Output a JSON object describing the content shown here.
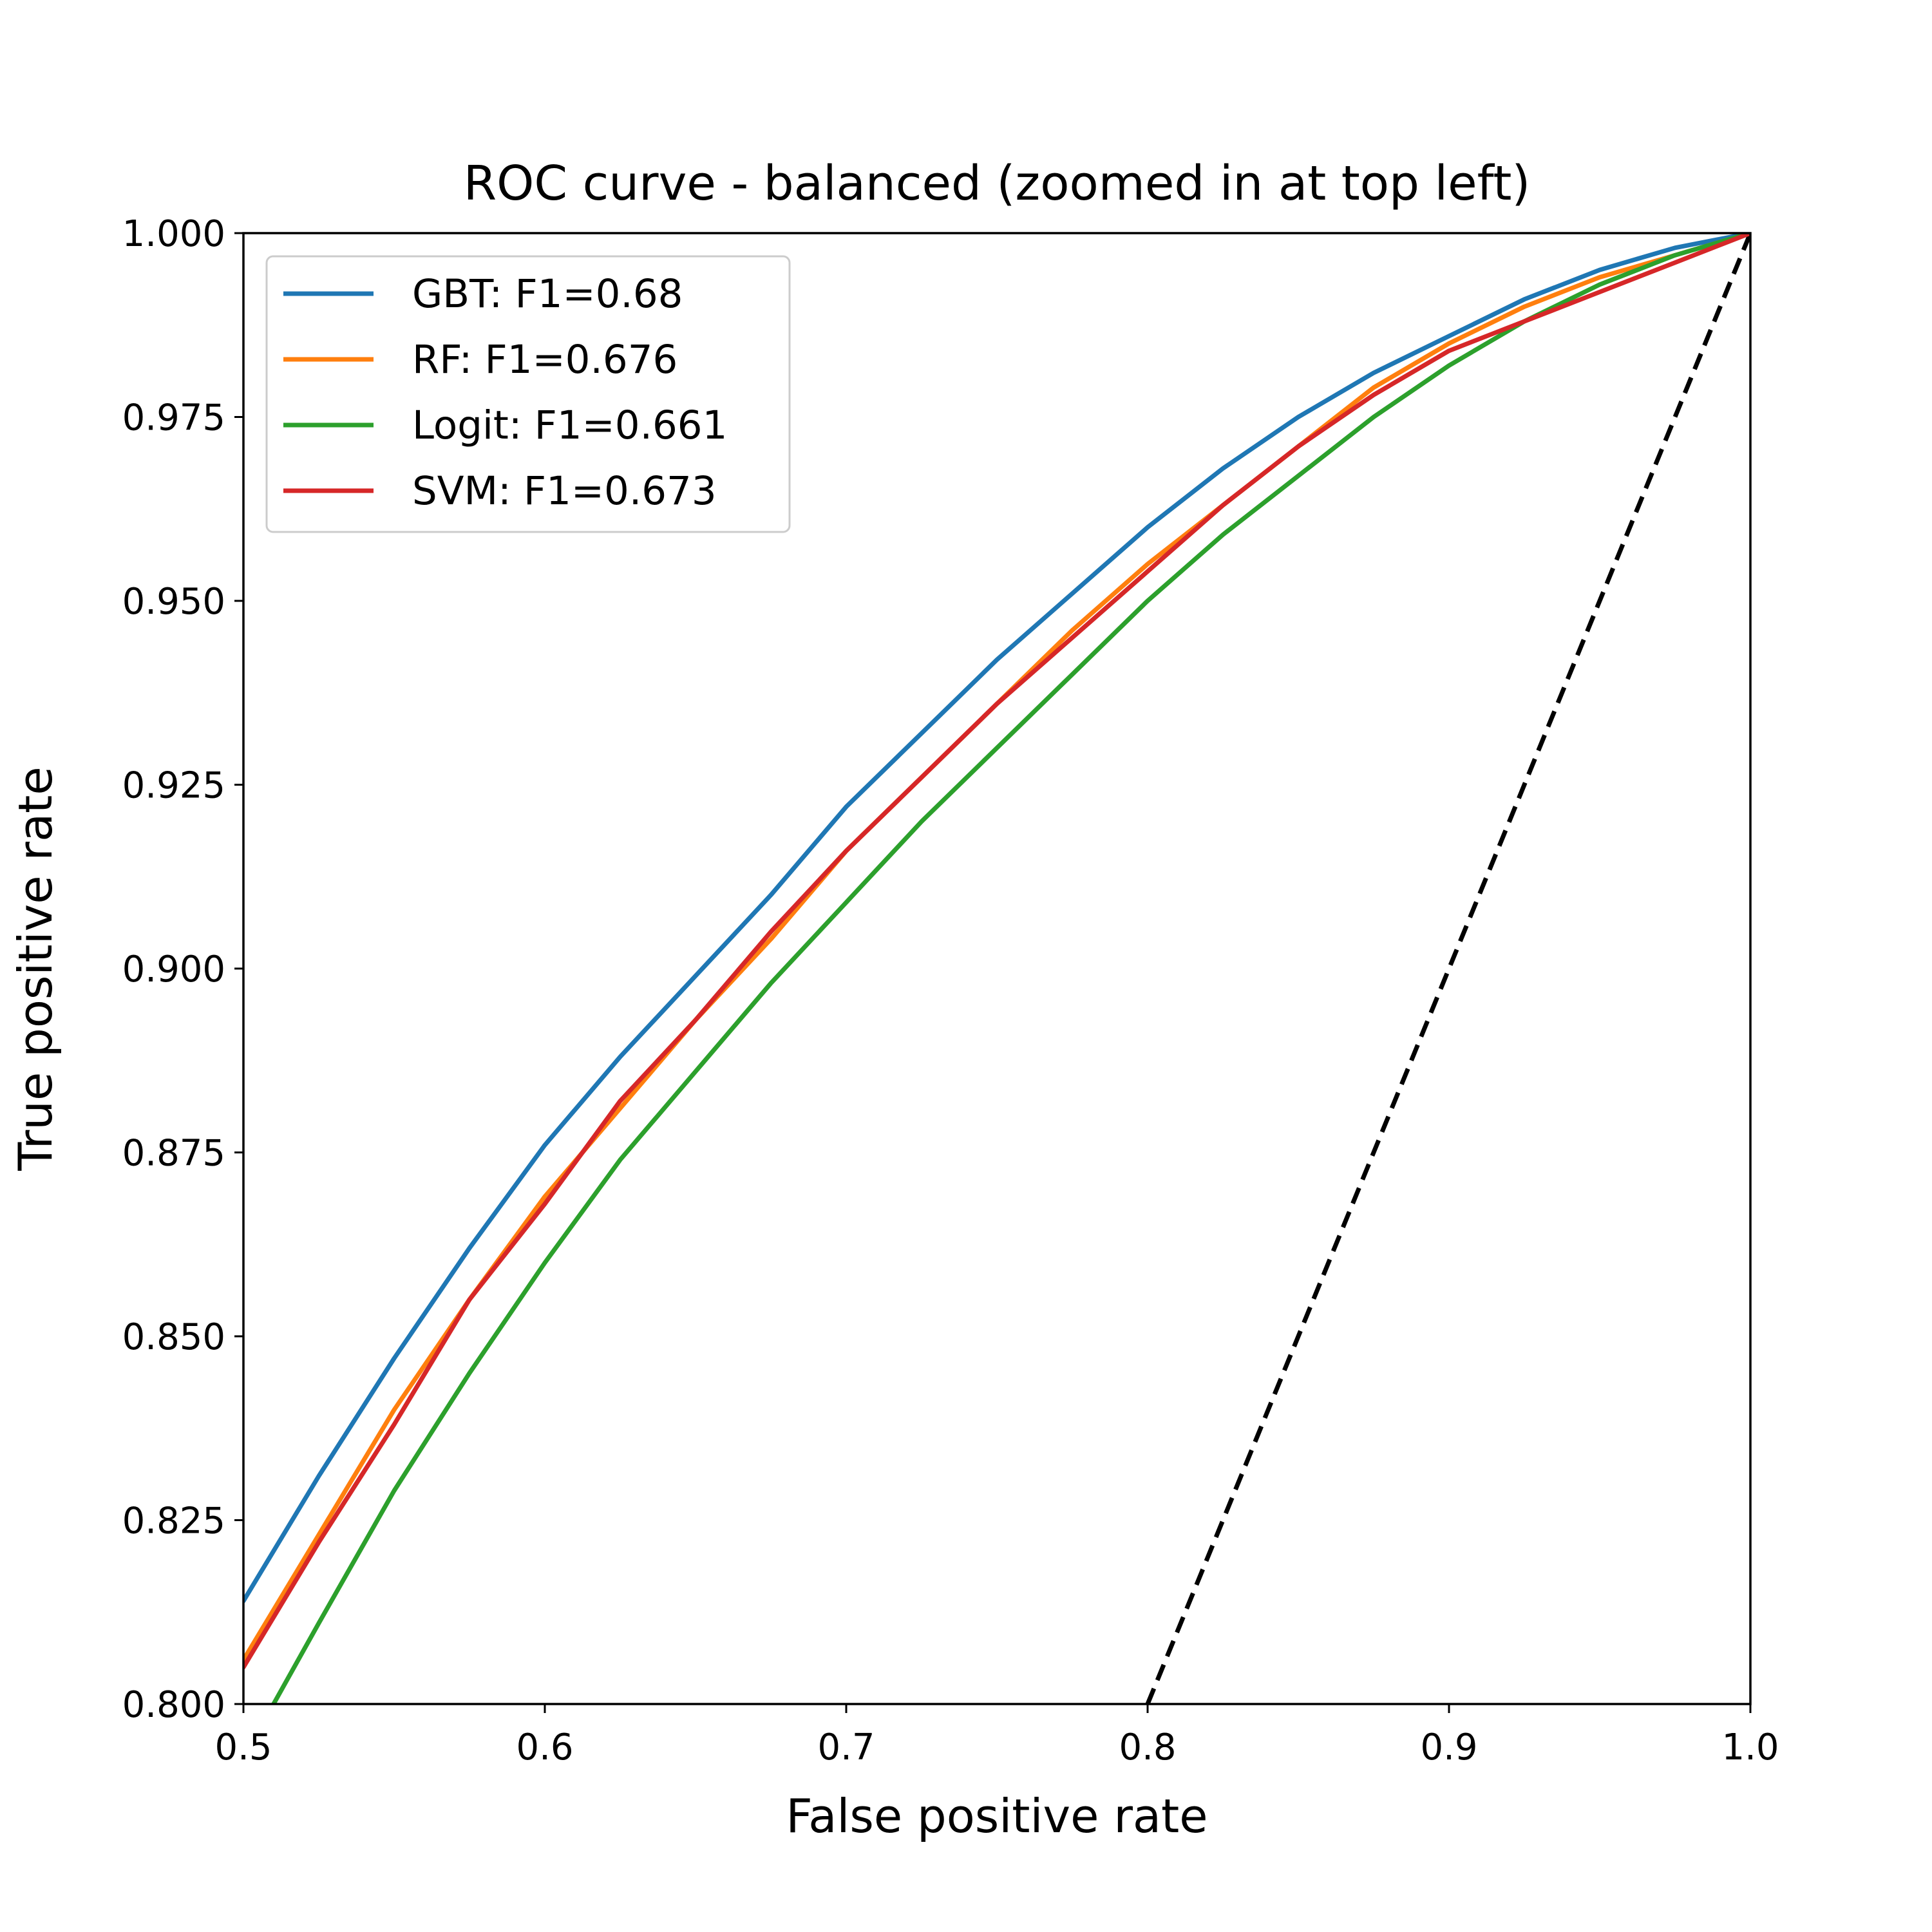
{
  "chart_data": {
    "type": "line",
    "title": "ROC curve - balanced (zoomed in at top left)",
    "xlabel": "False positive rate",
    "ylabel": "True positive rate",
    "xlim": [
      0.5,
      1.0
    ],
    "ylim": [
      0.8,
      1.0
    ],
    "xticks": [
      "0.5",
      "0.6",
      "0.7",
      "0.8",
      "0.9",
      "1.0"
    ],
    "yticks": [
      "0.800",
      "0.825",
      "0.850",
      "0.875",
      "0.900",
      "0.925",
      "0.950",
      "0.975",
      "1.000"
    ],
    "grid": false,
    "legend_position": "upper left",
    "series": [
      {
        "name": "GBT: F1=0.68",
        "color": "#1f77b4",
        "x": [
          0.5,
          0.525,
          0.55,
          0.575,
          0.6,
          0.625,
          0.65,
          0.675,
          0.7,
          0.725,
          0.75,
          0.775,
          0.8,
          0.825,
          0.85,
          0.875,
          0.9,
          0.925,
          0.95,
          0.975,
          1.0
        ],
        "y": [
          0.814,
          0.831,
          0.847,
          0.862,
          0.876,
          0.888,
          0.899,
          0.91,
          0.922,
          0.932,
          0.942,
          0.951,
          0.96,
          0.968,
          0.975,
          0.981,
          0.986,
          0.991,
          0.995,
          0.998,
          1.0
        ]
      },
      {
        "name": "RF: F1=0.676",
        "color": "#ff7f0e",
        "x": [
          0.5,
          0.525,
          0.55,
          0.575,
          0.6,
          0.625,
          0.65,
          0.675,
          0.7,
          0.725,
          0.75,
          0.775,
          0.8,
          0.825,
          0.85,
          0.875,
          0.9,
          0.925,
          0.95,
          0.975,
          1.0
        ],
        "y": [
          0.806,
          0.823,
          0.84,
          0.855,
          0.869,
          0.881,
          0.893,
          0.904,
          0.916,
          0.926,
          0.936,
          0.946,
          0.955,
          0.963,
          0.971,
          0.979,
          0.985,
          0.99,
          0.994,
          0.997,
          1.0
        ]
      },
      {
        "name": "Logit: F1=0.661",
        "color": "#2ca02c",
        "x": [
          0.51,
          0.525,
          0.55,
          0.575,
          0.6,
          0.625,
          0.65,
          0.675,
          0.7,
          0.725,
          0.75,
          0.775,
          0.8,
          0.825,
          0.85,
          0.875,
          0.9,
          0.925,
          0.95,
          0.975,
          1.0
        ],
        "y": [
          0.8,
          0.811,
          0.829,
          0.845,
          0.86,
          0.874,
          0.886,
          0.898,
          0.909,
          0.92,
          0.93,
          0.94,
          0.95,
          0.959,
          0.967,
          0.975,
          0.982,
          0.988,
          0.993,
          0.997,
          1.0
        ]
      },
      {
        "name": "SVM: F1=0.673",
        "color": "#d62728",
        "x": [
          0.5,
          0.525,
          0.55,
          0.575,
          0.6,
          0.625,
          0.65,
          0.675,
          0.7,
          0.725,
          0.75,
          0.775,
          0.8,
          0.825,
          0.85,
          0.875,
          0.9,
          0.925,
          0.95,
          0.975,
          1.0
        ],
        "y": [
          0.805,
          0.822,
          0.838,
          0.855,
          0.868,
          0.882,
          0.893,
          0.905,
          0.916,
          0.926,
          0.936,
          0.945,
          0.954,
          0.963,
          0.971,
          0.978,
          0.984,
          0.988,
          0.992,
          0.996,
          1.0
        ]
      }
    ],
    "reference_line": {
      "color": "#000000",
      "style": "dashed",
      "x": [
        0.8,
        1.0
      ],
      "y": [
        0.8,
        1.0
      ]
    }
  }
}
